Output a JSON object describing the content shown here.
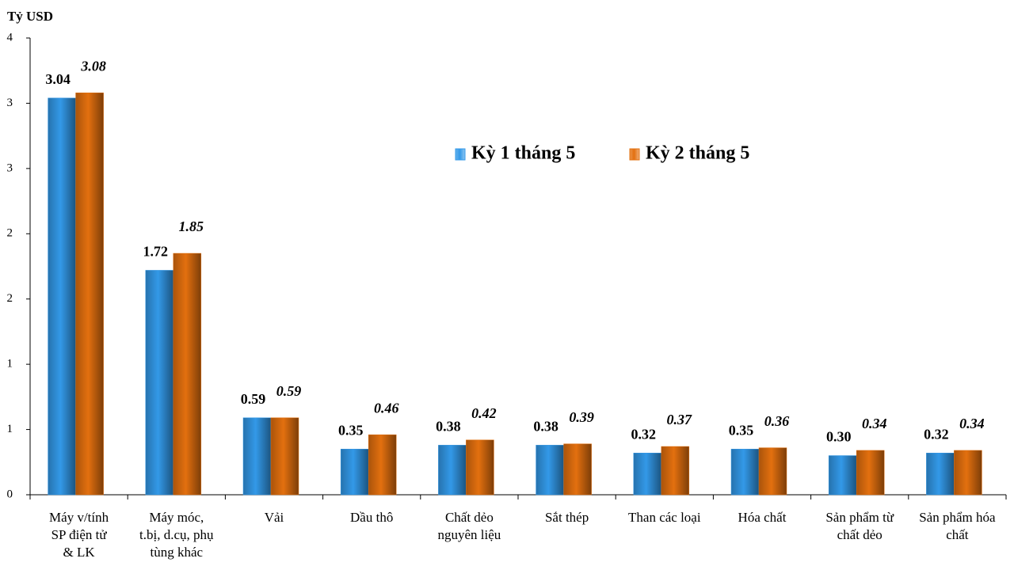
{
  "chart_data": {
    "type": "bar",
    "y_label": "Tỷ USD",
    "categories": [
      "Máy v/tính\nSP điện tử\n& LK",
      "Máy móc,\nt.bị, d.cụ, phụ\ntùng khác",
      "Vải",
      "Dầu thô",
      "Chất dẻo\nnguyên liệu",
      "Sắt thép",
      "Than các loại",
      "Hóa chất",
      "Sản phẩm từ\nchất dẻo",
      "Sản phẩm hóa\nchất"
    ],
    "series": [
      {
        "name": "Kỳ 1 tháng 5",
        "color": "#3399e8",
        "values": [
          3.04,
          1.72,
          0.59,
          0.35,
          0.38,
          0.38,
          0.32,
          0.35,
          0.3,
          0.32
        ],
        "value_labels": [
          "3.04",
          "1.72",
          "0.59",
          "0.35",
          "0.38",
          "0.38",
          "0.32",
          "0.35",
          "0.30",
          "0.32"
        ]
      },
      {
        "name": "Kỳ 2 tháng 5",
        "color": "#e3700f",
        "values": [
          3.08,
          1.85,
          0.59,
          0.46,
          0.42,
          0.39,
          0.37,
          0.36,
          0.34,
          0.34
        ],
        "value_labels": [
          "3.08",
          "1.85",
          "0.59",
          "0.46",
          "0.42",
          "0.39",
          "0.37",
          "0.36",
          "0.34",
          "0.34"
        ]
      }
    ],
    "ylim": [
      0,
      3.5
    ],
    "yticks": [
      0,
      {
        "value": 0.5,
        "label": "1"
      },
      1,
      {
        "value": 1.5,
        "label": "2"
      },
      2,
      {
        "value": 2.5,
        "label": "3"
      },
      3,
      {
        "value": 3.5,
        "label": "4"
      }
    ],
    "grid": false
  }
}
